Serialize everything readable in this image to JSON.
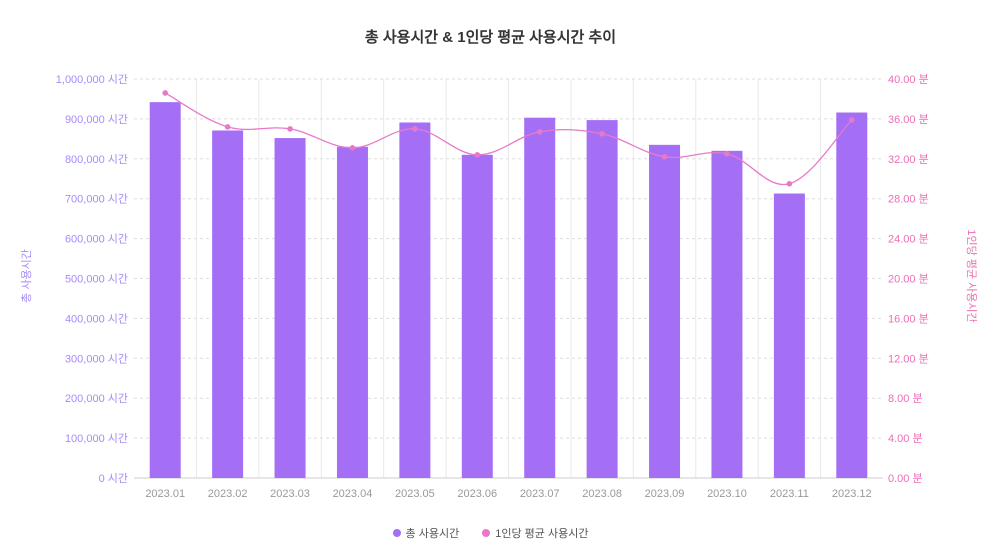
{
  "chart_data": {
    "type": "bar",
    "title": "총 사용시간 & 1인당 평균 사용시간 추이",
    "categories": [
      "2023.01",
      "2023.02",
      "2023.03",
      "2023.04",
      "2023.05",
      "2023.06",
      "2023.07",
      "2023.08",
      "2023.09",
      "2023.10",
      "2023.11",
      "2023.12"
    ],
    "series": [
      {
        "name": "총 사용시간",
        "type": "bar",
        "axis": "left",
        "color": "#a56ff5",
        "values": [
          942000,
          871000,
          852000,
          830000,
          891000,
          810000,
          903000,
          897000,
          835000,
          820000,
          713000,
          916000
        ]
      },
      {
        "name": "1인당 평균 사용시간",
        "type": "line",
        "axis": "right",
        "color": "#e879c9",
        "values": [
          38.6,
          35.2,
          35.0,
          33.1,
          35.0,
          32.4,
          34.7,
          34.5,
          32.2,
          32.5,
          29.5,
          35.9
        ]
      }
    ],
    "ylabel": "총 사용시간",
    "y2label": "1인당 평균 사용시간",
    "ylim": [
      0,
      1000000
    ],
    "y2lim": [
      0,
      40
    ],
    "yticks": [
      "0 시간",
      "100,000 시간",
      "200,000 시간",
      "300,000 시간",
      "400,000 시간",
      "500,000 시간",
      "600,000 시간",
      "700,000 시간",
      "800,000 시간",
      "900,000 시간",
      "1,000,000 시간"
    ],
    "y2ticks": [
      "0.00 분",
      "4.00 분",
      "8.00 분",
      "12.00 분",
      "16.00 분",
      "20.00 분",
      "24.00 분",
      "28.00 분",
      "32.00 분",
      "36.00 분",
      "40.00 분"
    ],
    "grid": true,
    "legend_position": "bottom"
  },
  "colors": {
    "bar": "#a56ff5",
    "line": "#e879c9",
    "left_axis_text": "#a78bfa",
    "right_axis_text": "#ec6fb5"
  }
}
